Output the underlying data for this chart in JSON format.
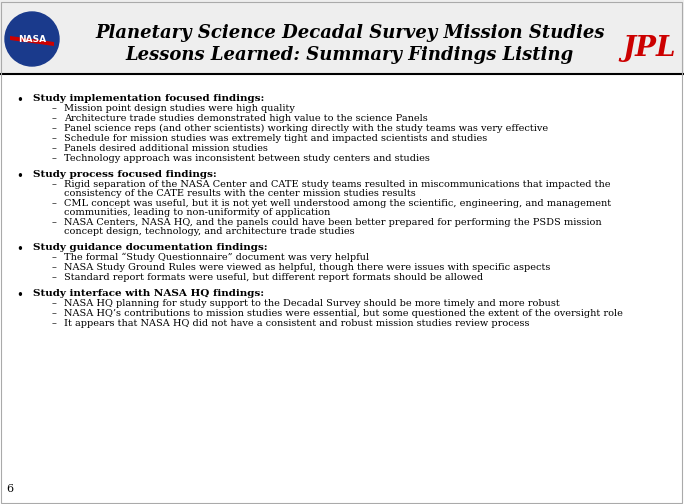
{
  "title_line1": "Planetary Science Decadal Survey Mission Studies",
  "title_line2": "Lessons Learned: Summary Findings Listing",
  "background_color": "#ffffff",
  "title_color": "#000000",
  "jpl_color": "#cc0000",
  "text_color": "#000000",
  "page_number": "6",
  "sections": [
    {
      "bullet": "Study implementation focused findings:",
      "subitems": [
        [
          "Mission point design studies were high quality"
        ],
        [
          "Architecture trade studies demonstrated high value to the science Panels"
        ],
        [
          "Panel science reps (and other scientists) working directly with the study teams was very effective"
        ],
        [
          "Schedule for mission studies was extremely tight and impacted scientists and studies"
        ],
        [
          "Panels desired additional mission studies"
        ],
        [
          "Technology approach was inconsistent between study centers and studies"
        ]
      ]
    },
    {
      "bullet": "Study process focused findings:",
      "subitems": [
        [
          "Rigid separation of the NASA Center and CATE study teams resulted in miscommunications that impacted the",
          "consistency of the CATE results with the center mission studies results"
        ],
        [
          "CML concept was useful, but it is not yet well understood among the scientific, engineering, and management",
          "communities, leading to non-uniformity of application"
        ],
        [
          "NASA Centers, NASA HQ, and the panels could have been better prepared for performing the PSDS mission",
          "concept design, technology, and architecture trade studies"
        ]
      ]
    },
    {
      "bullet": "Study guidance documentation findings:",
      "subitems": [
        [
          "The formal “Study Questionnaire” document was very helpful"
        ],
        [
          "NASA Study Ground Rules were viewed as helpful, though there were issues with specific aspects"
        ],
        [
          "Standard report formats were useful, but different report formats should be allowed"
        ]
      ]
    },
    {
      "bullet": "Study interface with NASA HQ findings:",
      "subitems": [
        [
          "NASA HQ planning for study support to the Decadal Survey should be more timely and more robust"
        ],
        [
          "NASA HQ’s contributions to mission studies were essential, but some questioned the extent of the oversight role"
        ],
        [
          "It appears that NASA HQ did not have a consistent and robust mission studies review process"
        ]
      ]
    }
  ]
}
